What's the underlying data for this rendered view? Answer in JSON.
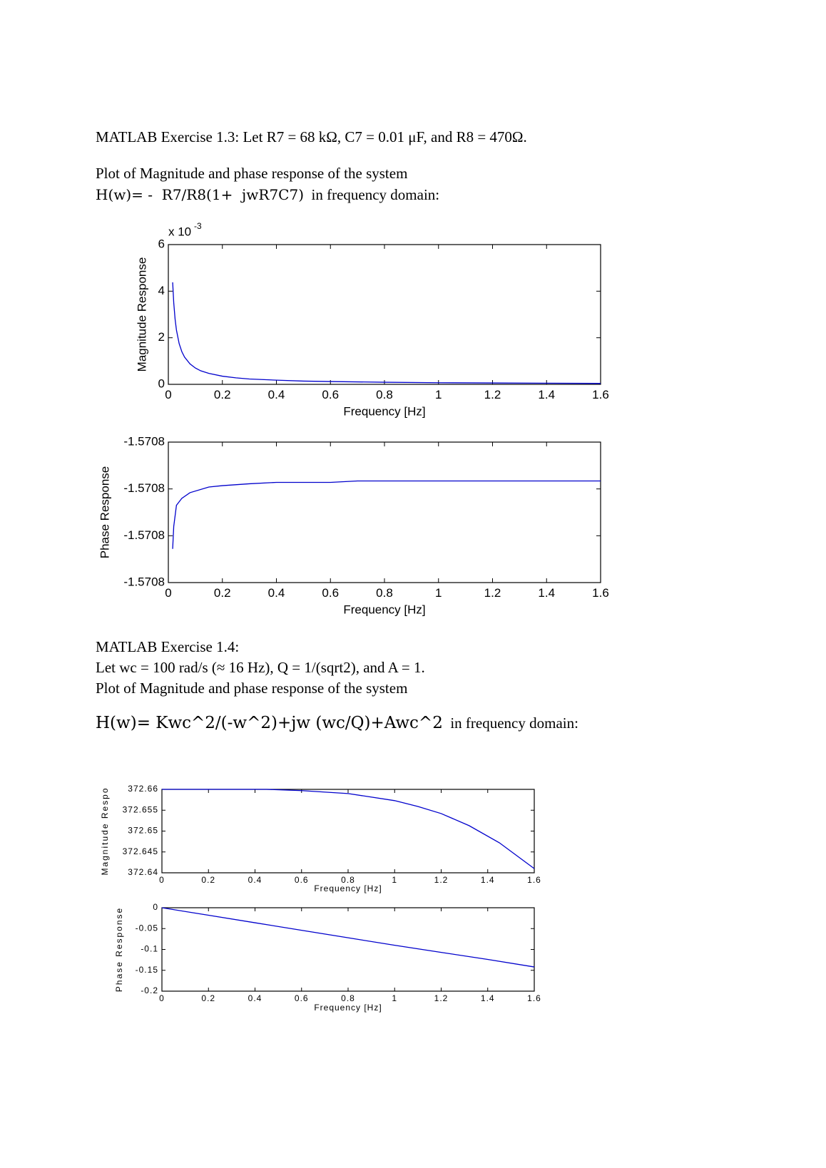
{
  "text": {
    "p1": "MATLAB Exercise 1.3: Let R7 = 68 kΩ, C7 = 0.01 μF, and R8 = 470Ω.",
    "p2_intro": "Plot of Magnitude and phase response of the system ",
    "p2_formula": "H(w)= -  R7/R8(1+  jwR7C7)",
    "p2_outro": "  in frequency domain:",
    "p3_line1": "MATLAB Exercise 1.4:",
    "p3_line2": "Let wc = 100 rad/s (≈ 16 Hz), Q = 1/(sqrt2), and A = 1.",
    "p3_line3": "Plot of Magnitude and phase response of the system",
    "p4_formula": "H(w)= Kwc^2/(-w^2)+jw (wc/Q)+Awc^2",
    "p4_outro": "  in frequency domain:"
  },
  "chart_data": [
    {
      "type": "line",
      "xlabel": "Frequency [Hz]",
      "ylabel": "Magnitude Response",
      "multiplier": {
        "base": "x 10",
        "exponent": "-3"
      },
      "x": [
        0.016,
        0.02,
        0.025,
        0.03,
        0.04,
        0.05,
        0.06,
        0.08,
        0.1,
        0.12,
        0.15,
        0.2,
        0.25,
        0.3,
        0.4,
        0.5,
        0.6,
        0.8,
        1.0,
        1.2,
        1.4,
        1.6
      ],
      "series": [
        {
          "color": "#0000cc",
          "values": [
            4.38,
            3.5,
            2.8,
            2.33,
            1.75,
            1.4,
            1.17,
            0.88,
            0.7,
            0.58,
            0.47,
            0.35,
            0.28,
            0.23,
            0.18,
            0.14,
            0.12,
            0.09,
            0.07,
            0.06,
            0.05,
            0.04
          ]
        }
      ],
      "xlim": [
        0,
        1.6
      ],
      "ylim": [
        0,
        6
      ],
      "xticks": [
        0,
        0.2,
        0.4,
        0.6,
        0.8,
        1,
        1.2,
        1.4,
        1.6
      ],
      "yticks": [
        0,
        2,
        4,
        6
      ]
    },
    {
      "type": "line",
      "xlabel": "Frequency [Hz]",
      "ylabel": "Phase Response",
      "x": [
        0.016,
        0.02,
        0.03,
        0.05,
        0.08,
        0.15,
        0.2,
        0.3,
        0.4,
        0.6,
        0.7,
        1.0,
        1.6
      ],
      "series": [
        {
          "color": "#0000cc",
          "values": [
            -1.57079928,
            -1.5707988,
            -1.57079835,
            -1.5707982,
            -1.57079808,
            -1.57079796,
            -1.57079793,
            -1.57079789,
            -1.57079786,
            -1.57079786,
            -1.57079783,
            -1.57079783,
            -1.57079783
          ]
        }
      ],
      "xlim": [
        0,
        1.6
      ],
      "ylim": [
        -1.5708,
        -1.570797
      ],
      "xticks": [
        0,
        0.2,
        0.4,
        0.6,
        0.8,
        1,
        1.2,
        1.4,
        1.6
      ],
      "yticks": [
        -1.5708,
        {
          "value": -1.570799,
          "label": "-1.5708"
        },
        {
          "value": -1.570798,
          "label": "-1.5708"
        },
        {
          "value": -1.570797,
          "label": "-1.5708"
        }
      ]
    },
    {
      "type": "line",
      "xlabel": "Frequency [Hz]",
      "ylabel": "Magnitude Respo",
      "x": [
        0,
        0.2,
        0.45,
        0.6,
        0.8,
        1.0,
        1.1,
        1.2,
        1.32,
        1.45,
        1.6
      ],
      "series": [
        {
          "color": "#0000cc",
          "values": [
            372.66,
            372.66,
            372.66,
            372.6597,
            372.659,
            372.6573,
            372.6559,
            372.6542,
            372.6513,
            372.6472,
            372.641
          ]
        }
      ],
      "xlim": [
        0,
        1.6
      ],
      "ylim": [
        372.64,
        372.66
      ],
      "xticks": [
        0,
        0.2,
        0.4,
        0.6,
        0.8,
        1,
        1.2,
        1.4,
        1.6
      ],
      "yticks": [
        372.64,
        372.645,
        372.65,
        372.655,
        372.66
      ]
    },
    {
      "type": "line",
      "xlabel": "Frequency [Hz]",
      "ylabel": "Phase Response",
      "x": [
        0,
        0.2,
        0.4,
        0.6,
        0.8,
        1.0,
        1.2,
        1.4,
        1.6
      ],
      "series": [
        {
          "color": "#0000cc",
          "values": [
            0,
            -0.018,
            -0.036,
            -0.054,
            -0.072,
            -0.09,
            -0.107,
            -0.124,
            -0.142
          ]
        }
      ],
      "xlim": [
        0,
        1.6
      ],
      "ylim": [
        -0.2,
        0
      ],
      "xticks": [
        0,
        0.2,
        0.4,
        0.6,
        0.8,
        1,
        1.2,
        1.4,
        1.6
      ],
      "yticks": [
        -0.2,
        -0.15,
        -0.1,
        -0.05,
        0
      ]
    }
  ]
}
